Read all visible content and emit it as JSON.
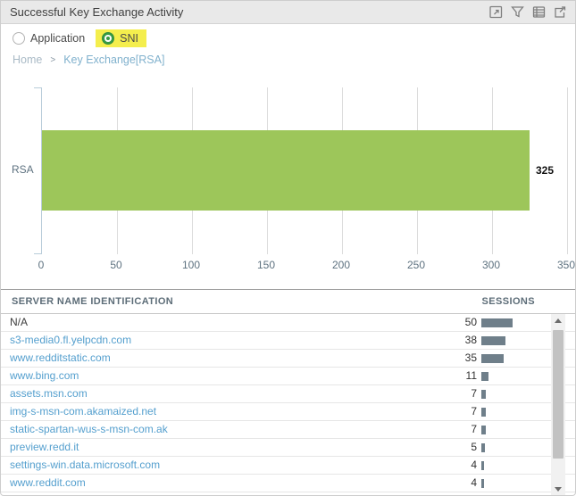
{
  "header": {
    "title": "Successful Key Exchange Activity",
    "icons": [
      {
        "name": "maximize-icon"
      },
      {
        "name": "filter-icon"
      },
      {
        "name": "table-view-icon"
      },
      {
        "name": "export-icon"
      }
    ]
  },
  "controls": {
    "options": [
      {
        "label": "Application",
        "selected": false,
        "highlighted": false
      },
      {
        "label": "SNI",
        "selected": true,
        "highlighted": true
      }
    ]
  },
  "breadcrumb": {
    "home": "Home",
    "separator": ">",
    "current": "Key Exchange[RSA]"
  },
  "chart_data": {
    "type": "bar",
    "orientation": "horizontal",
    "categories": [
      "RSA"
    ],
    "values": [
      325
    ],
    "value_label": "325",
    "xlim": [
      0,
      350
    ],
    "xticks": [
      0,
      50,
      100,
      150,
      200,
      250,
      300,
      350
    ],
    "grid": true,
    "bar_color": "#9dc65a"
  },
  "table": {
    "columns": [
      "SERVER NAME IDENTIFICATION",
      "SESSIONS"
    ],
    "rows": [
      {
        "name": "N/A",
        "sessions": 50,
        "link": false
      },
      {
        "name": "s3-media0.fl.yelpcdn.com",
        "sessions": 38,
        "link": true
      },
      {
        "name": "www.redditstatic.com",
        "sessions": 35,
        "link": true
      },
      {
        "name": "www.bing.com",
        "sessions": 11,
        "link": true
      },
      {
        "name": "assets.msn.com",
        "sessions": 7,
        "link": true
      },
      {
        "name": "img-s-msn-com.akamaized.net",
        "sessions": 7,
        "link": true
      },
      {
        "name": "static-spartan-wus-s-msn-com.ak",
        "sessions": 7,
        "link": true
      },
      {
        "name": "preview.redd.it",
        "sessions": 5,
        "link": true
      },
      {
        "name": "settings-win.data.microsoft.com",
        "sessions": 4,
        "link": true
      },
      {
        "name": "www.reddit.com",
        "sessions": 4,
        "link": true
      }
    ]
  },
  "colors": {
    "chart_bar": "#9dc65a",
    "session_bar": "#6f7f8a",
    "link": "#549fce",
    "highlight": "#f4ee4d",
    "radio_selected": "#379b45",
    "titlebar_bg": "#e9e9e9"
  }
}
